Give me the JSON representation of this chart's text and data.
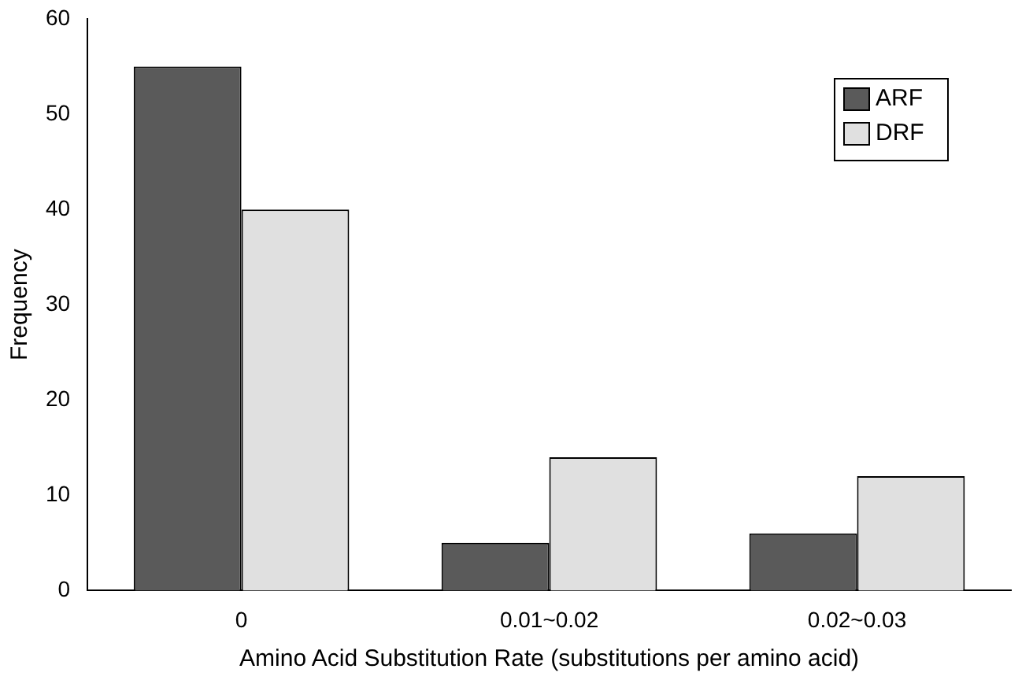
{
  "chart_data": {
    "type": "bar",
    "xlabel": "Amino Acid Substitution Rate (substitutions per amino acid)",
    "ylabel": "Frequency",
    "categories": [
      "0",
      "0.01~0.02",
      "0.02~0.03"
    ],
    "series": [
      {
        "name": "ARF",
        "color": "#5a5a5a",
        "values": [
          55,
          5,
          6
        ]
      },
      {
        "name": "DRF",
        "color": "#e0e0e0",
        "values": [
          40,
          14,
          12
        ]
      }
    ],
    "ylim": [
      0,
      60
    ],
    "yticks": [
      0,
      10,
      20,
      30,
      40,
      50,
      60
    ],
    "grid": false,
    "legend": "top right"
  }
}
